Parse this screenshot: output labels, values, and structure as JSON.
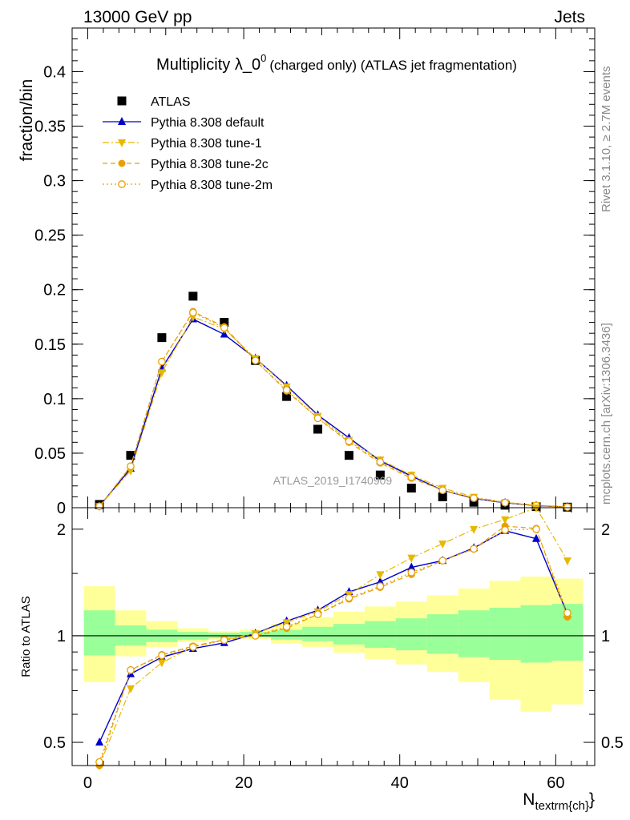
{
  "header": {
    "left": "13000 GeV pp",
    "right": "Jets"
  },
  "side_labels": {
    "top": "Rivet 3.1.10, ≥ 2.7M events",
    "bottom": "mcplots.cern.ch [arXiv:1306.3436]"
  },
  "chart_data": [
    {
      "type": "line",
      "title": "Multiplicity λ_0⁰ (charged only) (ATLAS jet fragmentation)",
      "title_main": "Multiplicity λ_0",
      "title_sup": "0",
      "title_rest": "(charged only) (ATLAS jet fragmentation)",
      "ylabel": "fraction/bin",
      "watermark": "ATLAS_2019_I1740909",
      "xlim": [
        -2,
        65
      ],
      "ylim": [
        0,
        0.44
      ],
      "yticks": [
        0,
        0.05,
        0.1,
        0.15,
        0.2,
        0.25,
        0.3,
        0.35,
        0.4
      ],
      "ytick_labels": [
        "0",
        "0.05",
        "0.1",
        "0.15",
        "0.2",
        "0.25",
        "0.3",
        "0.35",
        "0.4"
      ],
      "x": [
        1.5,
        5.5,
        9.5,
        13.5,
        17.5,
        21.5,
        25.5,
        29.5,
        33.5,
        37.5,
        41.5,
        45.5,
        49.5,
        53.5,
        57.5,
        61.5
      ],
      "series": [
        {
          "name": "ATLAS",
          "color": "#000000",
          "marker": "square",
          "line": "none",
          "values": [
            0.003,
            0.048,
            0.156,
            0.194,
            0.17,
            0.135,
            0.102,
            0.072,
            0.048,
            0.03,
            0.018,
            0.01,
            0.005,
            0.0023,
            0.001,
            0.0005
          ]
        },
        {
          "name": "Pythia 8.308 default",
          "color": "#0000cc",
          "marker": "triangle-up",
          "line": "solid",
          "values": [
            0.0015,
            0.036,
            0.128,
            0.173,
            0.159,
            0.137,
            0.112,
            0.085,
            0.064,
            0.043,
            0.029,
            0.016,
            0.0085,
            0.0045,
            0.0019,
            0.0006
          ]
        },
        {
          "name": "Pythia 8.308 tune-1",
          "color": "#e8b800",
          "marker": "triangle-down",
          "line": "dashdot",
          "values": [
            0.0013,
            0.034,
            0.124,
            0.175,
            0.164,
            0.137,
            0.111,
            0.084,
            0.062,
            0.044,
            0.03,
            0.018,
            0.0098,
            0.0049,
            0.0023,
            0.0008
          ]
        },
        {
          "name": "Pythia 8.308 tune-2c",
          "color": "#e8a000",
          "marker": "circle",
          "line": "dashed",
          "values": [
            0.0011,
            0.038,
            0.134,
            0.18,
            0.166,
            0.135,
            0.107,
            0.082,
            0.06,
            0.041,
            0.027,
            0.016,
            0.0089,
            0.0047,
            0.002,
            0.0006
          ]
        },
        {
          "name": "Pythia 8.308 tune-2m",
          "color": "#e8a000",
          "marker": "open-circle",
          "line": "dotted",
          "values": [
            0.0013,
            0.038,
            0.134,
            0.179,
            0.165,
            0.135,
            0.108,
            0.082,
            0.061,
            0.042,
            0.028,
            0.016,
            0.0088,
            0.0046,
            0.002,
            0.00058
          ]
        }
      ],
      "legend_position": "top-left"
    },
    {
      "type": "line",
      "ylabel": "Ratio to ATLAS",
      "xlabel_main": "N",
      "xlabel_sub": "textrm{ch}",
      "xlabel_close": "}",
      "xlim": [
        -2,
        65
      ],
      "ylim": [
        0.43,
        2.3
      ],
      "yticks": [
        0.5,
        1,
        2
      ],
      "ytick_labels": [
        "0.5",
        "1",
        "2"
      ],
      "xticks": [
        0,
        20,
        40,
        60
      ],
      "xtick_labels": [
        "0",
        "20",
        "40",
        "60"
      ],
      "x": [
        1.5,
        5.5,
        9.5,
        13.5,
        17.5,
        21.5,
        25.5,
        29.5,
        33.5,
        37.5,
        41.5,
        45.5,
        49.5,
        53.5,
        57.5,
        61.5
      ],
      "bin_edges": [
        -0.5,
        3.5,
        7.5,
        11.5,
        15.5,
        19.5,
        23.5,
        27.5,
        31.5,
        35.5,
        39.5,
        43.5,
        47.5,
        51.5,
        55.5,
        59.5,
        63.5
      ],
      "band_green": {
        "low": [
          0.88,
          0.94,
          0.96,
          0.975,
          0.985,
          0.99,
          0.975,
          0.965,
          0.945,
          0.925,
          0.91,
          0.89,
          0.87,
          0.855,
          0.84,
          0.85
        ],
        "high": [
          1.18,
          1.07,
          1.04,
          1.025,
          1.02,
          1.025,
          1.04,
          1.06,
          1.08,
          1.1,
          1.12,
          1.15,
          1.18,
          1.2,
          1.22,
          1.23
        ]
      },
      "band_yellow": {
        "low": [
          0.74,
          0.875,
          0.93,
          0.96,
          0.975,
          0.98,
          0.95,
          0.93,
          0.895,
          0.86,
          0.83,
          0.79,
          0.74,
          0.66,
          0.61,
          0.64
        ],
        "high": [
          1.38,
          1.18,
          1.1,
          1.05,
          1.03,
          1.04,
          1.08,
          1.13,
          1.17,
          1.21,
          1.25,
          1.3,
          1.36,
          1.43,
          1.47,
          1.45
        ]
      },
      "series": [
        {
          "name": "Pythia 8.308 default",
          "color": "#0000cc",
          "marker": "triangle-up",
          "line": "solid",
          "values": [
            0.5,
            0.78,
            0.87,
            0.92,
            0.955,
            1.015,
            1.1,
            1.18,
            1.33,
            1.42,
            1.56,
            1.63,
            1.77,
            1.98,
            1.88,
            1.15
          ]
        },
        {
          "name": "Pythia 8.308 tune-1",
          "color": "#e8b800",
          "marker": "triangle-down",
          "line": "dashdot",
          "values": [
            0.43,
            0.71,
            0.84,
            0.93,
            0.975,
            1.015,
            1.09,
            1.17,
            1.31,
            1.49,
            1.66,
            1.82,
            2.0,
            2.13,
            2.3,
            1.63
          ]
        },
        {
          "name": "Pythia 8.308 tune-2c",
          "color": "#e8a000",
          "marker": "circle",
          "line": "dashed",
          "values": [
            0.37,
            0.8,
            0.885,
            0.935,
            0.975,
            1.0,
            1.05,
            1.15,
            1.27,
            1.37,
            1.49,
            1.63,
            1.76,
            2.04,
            2.01,
            1.13
          ]
        },
        {
          "name": "Pythia 8.308 tune-2m",
          "color": "#e8a000",
          "marker": "open-circle",
          "line": "dotted",
          "values": [
            0.44,
            0.8,
            0.88,
            0.93,
            0.972,
            1.0,
            1.06,
            1.15,
            1.28,
            1.38,
            1.51,
            1.63,
            1.76,
            1.99,
            2.0,
            1.16
          ]
        }
      ]
    }
  ]
}
